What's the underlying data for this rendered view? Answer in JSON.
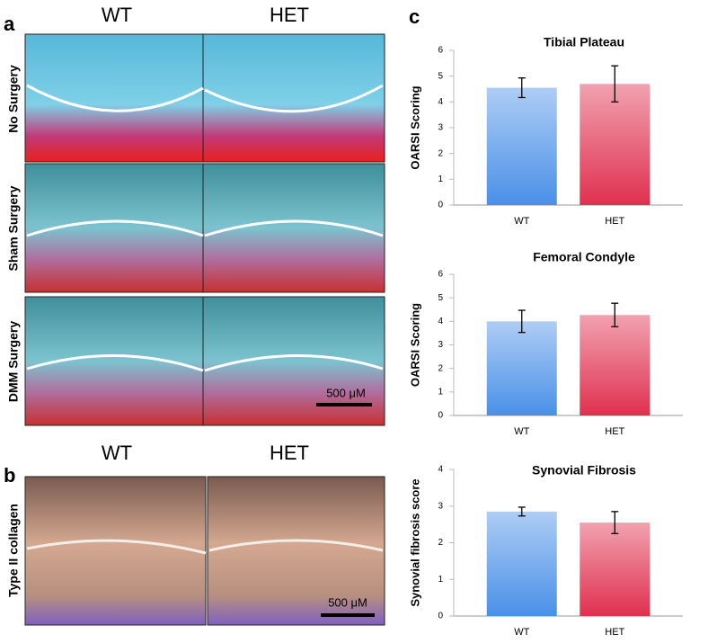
{
  "panel_a": {
    "label": "a",
    "columns": [
      "WT",
      "HET"
    ],
    "rows": [
      "No Surgery",
      "Sham Surgery",
      "DMM Surgery"
    ],
    "scale_bar": "500 μM"
  },
  "panel_b": {
    "label": "b",
    "columns": [
      "WT",
      "HET"
    ],
    "row": "Type II collagen",
    "scale_bar": "500 μM"
  },
  "panel_c": {
    "label": "c"
  },
  "chart_data": [
    {
      "type": "bar",
      "title": "Tibial Plateau",
      "y_label": "OARSI Scoring",
      "categories": [
        "WT",
        "HET"
      ],
      "values": [
        4.55,
        4.7
      ],
      "errors": [
        0.38,
        0.7
      ],
      "colors": [
        "#4a90e8",
        "#e0304f"
      ],
      "ylim": [
        0,
        6
      ],
      "yticks": [
        0,
        1,
        2,
        3,
        4,
        5,
        6
      ]
    },
    {
      "type": "bar",
      "title": "Femoral Condyle",
      "y_label": "OARSI Scoring",
      "categories": [
        "WT",
        "HET"
      ],
      "values": [
        4.0,
        4.27
      ],
      "errors": [
        0.47,
        0.5
      ],
      "colors": [
        "#4a90e8",
        "#e0304f"
      ],
      "ylim": [
        0,
        6
      ],
      "yticks": [
        0,
        1,
        2,
        3,
        4,
        5,
        6
      ]
    },
    {
      "type": "bar",
      "title": "Synovial Fibrosis",
      "y_label": "Synovial fibrosis score",
      "categories": [
        "WT",
        "HET"
      ],
      "values": [
        2.85,
        2.55
      ],
      "errors": [
        0.12,
        0.3
      ],
      "colors": [
        "#4a90e8",
        "#e0304f"
      ],
      "ylim": [
        0,
        4
      ],
      "yticks": [
        0,
        1,
        2,
        3,
        4
      ]
    }
  ]
}
